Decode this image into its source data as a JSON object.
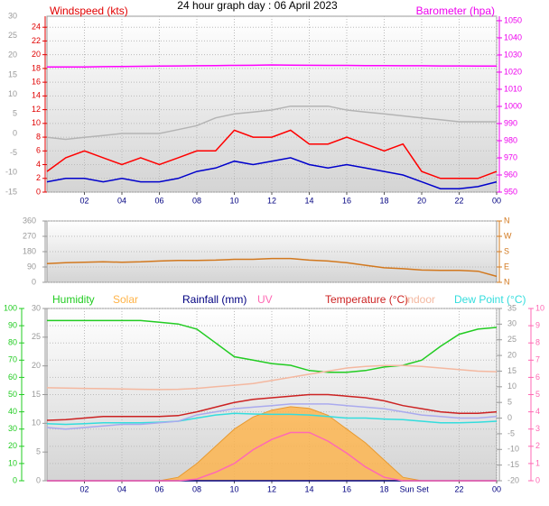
{
  "chart_data": [
    {
      "type": "line",
      "title": "24 hour graph day : 06 April 2023",
      "ylabel": "Windspeed (kts)",
      "y2label": "Barometer (hpa)",
      "xlim": [
        0,
        24
      ],
      "xticks": [
        {
          "value": 2,
          "label": "02"
        },
        {
          "value": 4,
          "label": "04"
        },
        {
          "value": 6,
          "label": "06"
        },
        {
          "value": 8,
          "label": "08"
        },
        10,
        12,
        14,
        16,
        18,
        20,
        22,
        {
          "value": 24,
          "label": "00"
        }
      ],
      "x": [
        0,
        1,
        2,
        3,
        4,
        5,
        6,
        7,
        8,
        9,
        10,
        11,
        12,
        13,
        14,
        15,
        16,
        17,
        18,
        19,
        20,
        21,
        22,
        23,
        24
      ],
      "ylim": [
        0,
        25.6
      ],
      "yticks": [
        0,
        2,
        4,
        6,
        8,
        10,
        12,
        14,
        16,
        18,
        20,
        22,
        24
      ],
      "ycolor": "#e00000",
      "y2lim": [
        950,
        1052.6
      ],
      "y2ticks": [
        950,
        960,
        970,
        980,
        990,
        1000,
        1010,
        1020,
        1030,
        1040,
        1050
      ],
      "y2color": "#ee00ee",
      "y3lim": [
        -15,
        30
      ],
      "y3ticks": [
        -15,
        -10,
        -5,
        0,
        5,
        10,
        15,
        20,
        25,
        30
      ],
      "y3color": "#999999",
      "grid": true,
      "series": [
        {
          "axis": "y2",
          "color": "#ff00ff",
          "values": [
            1023,
            1023,
            1023,
            1023.2,
            1023.3,
            1023.4,
            1023.5,
            1023.6,
            1023.7,
            1023.8,
            1023.9,
            1024,
            1024.2,
            1024.1,
            1024,
            1023.9,
            1023.9,
            1023.8,
            1023.8,
            1023.7,
            1023.7,
            1023.6,
            1023.6,
            1023.5,
            1023.5
          ]
        },
        {
          "axis": "y3",
          "color": "#b4b4b4",
          "values": [
            -1,
            -1.5,
            -1,
            -0.5,
            0,
            0,
            0,
            1,
            2,
            4,
            5,
            5.5,
            6,
            7,
            7,
            7,
            6,
            5.5,
            5,
            4.5,
            4,
            3.5,
            3,
            3,
            3
          ]
        },
        {
          "name": "Windspeed (kts)",
          "color": "#ff0000",
          "values": [
            3,
            5,
            6,
            5,
            4,
            5,
            4,
            5,
            6,
            6,
            9,
            8,
            8,
            9,
            7,
            7,
            8,
            7,
            6,
            7,
            3,
            2,
            2,
            2,
            3
          ]
        },
        {
          "color": "#0000cc",
          "values": [
            1.5,
            2,
            2,
            1.5,
            2,
            1.5,
            1.5,
            2,
            3,
            3.5,
            4.5,
            4,
            4.5,
            5,
            4,
            3.5,
            4,
            3.5,
            3,
            2.5,
            1.5,
            0.5,
            0.5,
            0.8,
            1.5
          ]
        }
      ]
    },
    {
      "type": "line",
      "xlim": [
        0,
        24
      ],
      "x": [
        0,
        1,
        2,
        3,
        4,
        5,
        6,
        7,
        8,
        9,
        10,
        11,
        12,
        13,
        14,
        15,
        16,
        17,
        18,
        19,
        20,
        21,
        22,
        23,
        24
      ],
      "ylim": [
        0,
        360
      ],
      "yticks": [
        0,
        90,
        180,
        270,
        360
      ],
      "ycolor": "#999999",
      "y2lim": [
        0,
        360
      ],
      "y2ticks": [
        {
          "value": 0,
          "label": "N"
        },
        {
          "value": 90,
          "label": "E"
        },
        {
          "value": 180,
          "label": "S"
        },
        {
          "value": 270,
          "label": "W"
        },
        {
          "value": 360,
          "label": "N"
        }
      ],
      "y2color": "#d2781e",
      "grid": true,
      "series": [
        {
          "color": "#d2781e",
          "values": [
            110,
            115,
            118,
            120,
            118,
            120,
            125,
            128,
            128,
            130,
            135,
            135,
            140,
            140,
            130,
            125,
            115,
            100,
            85,
            80,
            72,
            70,
            70,
            65,
            35
          ]
        }
      ]
    },
    {
      "type": "line",
      "xlim": [
        0,
        24
      ],
      "xticks": [
        {
          "value": 2,
          "label": "02"
        },
        {
          "value": 4,
          "label": "04"
        },
        {
          "value": 6,
          "label": "06"
        },
        {
          "value": 8,
          "label": "08"
        },
        10,
        12,
        14,
        16,
        18,
        22,
        {
          "value": 24,
          "label": "00"
        }
      ],
      "x": [
        0,
        1,
        2,
        3,
        4,
        5,
        6,
        7,
        8,
        9,
        10,
        11,
        12,
        13,
        14,
        15,
        16,
        17,
        18,
        19,
        20,
        21,
        22,
        23,
        24
      ],
      "ylim": [
        0,
        100
      ],
      "yticks": [
        0,
        10,
        20,
        30,
        40,
        50,
        60,
        70,
        80,
        90,
        100
      ],
      "ycolor": "#22cc22",
      "y3lim": [
        0,
        30
      ],
      "y3ticks": [
        0,
        5,
        10,
        15,
        20,
        25,
        30
      ],
      "y3color": "#999999",
      "y2lim": [
        -20,
        35
      ],
      "y2ticks": [
        -20,
        -15,
        -10,
        -5,
        0,
        5,
        10,
        15,
        20,
        25,
        30,
        35
      ],
      "y2color": "#999999",
      "y4lim": [
        0,
        10
      ],
      "y4ticks": [
        0,
        1,
        2,
        3,
        4,
        5,
        6,
        7,
        8,
        9,
        10
      ],
      "y4color": "#ff69b4",
      "grid": true,
      "annotations": [
        {
          "text": "Sun Set",
          "x": 19.6
        }
      ],
      "series": [
        {
          "name": "Humidity",
          "color": "#22cc22",
          "values": [
            93,
            93,
            93,
            93,
            93,
            93,
            92,
            91,
            88,
            80,
            72,
            70,
            68,
            67,
            64,
            63,
            63,
            64,
            66,
            67,
            70,
            78,
            85,
            88,
            89
          ]
        },
        {
          "name": "Solar",
          "color": "#ffb347",
          "style": "area",
          "values": [
            0,
            0,
            0,
            0,
            0,
            0,
            0,
            2,
            10,
            20,
            30,
            37,
            41,
            43,
            42,
            38,
            30,
            22,
            12,
            2,
            0,
            0,
            0,
            0,
            0
          ]
        },
        {
          "name": "Rainfall (mm)",
          "color": "#000080",
          "axis": "y3",
          "values": [
            0,
            0,
            0,
            0,
            0,
            0,
            0,
            0,
            0,
            0,
            0,
            0,
            0,
            0,
            0,
            0,
            0,
            0,
            0,
            0,
            0,
            0,
            0,
            0,
            0
          ]
        },
        {
          "name": "UV",
          "color": "#ff69b4",
          "axis": "y4",
          "values": [
            0,
            0,
            0,
            0,
            0,
            0,
            0,
            0,
            0.1,
            0.5,
            1,
            1.8,
            2.4,
            2.8,
            2.8,
            2.3,
            1.6,
            0.8,
            0.2,
            0,
            0,
            0,
            0,
            0,
            0
          ]
        },
        {
          "name": "Temperature (°C)",
          "color": "#cc2222",
          "axis": "y2",
          "values": [
            -0.7,
            -0.5,
            0,
            0.5,
            0.5,
            0.5,
            0.5,
            0.8,
            2,
            3.5,
            5,
            6,
            6.5,
            7,
            7.5,
            7.5,
            7,
            6.5,
            5.5,
            4,
            3,
            2,
            1.5,
            1.5,
            2
          ]
        },
        {
          "name": "Indoor",
          "color": "#f4b8a0",
          "axis": "y2",
          "values": [
            9.7,
            9.6,
            9.5,
            9.4,
            9.3,
            9.2,
            9.1,
            9.2,
            9.5,
            10,
            10.5,
            11,
            12,
            13,
            14,
            15,
            16,
            16.5,
            16.8,
            16.8,
            16.5,
            16,
            15.5,
            15,
            14.8
          ]
        },
        {
          "name": "Dew Point (°C)",
          "color": "#33dddd",
          "axis": "y2",
          "values": [
            -1.8,
            -2,
            -1.8,
            -1.5,
            -1.5,
            -1.5,
            -1.3,
            -1,
            0,
            1,
            1.5,
            1.3,
            1.2,
            1.2,
            1,
            0.5,
            0,
            0,
            -0.3,
            -0.5,
            -1,
            -1.5,
            -1.5,
            -1.3,
            -1
          ]
        },
        {
          "color": "#aaaaee",
          "axis": "y2",
          "values": [
            -3,
            -3.5,
            -3,
            -2.5,
            -2,
            -2,
            -1.5,
            -1,
            1,
            2,
            3,
            3.5,
            4,
            4.5,
            4.5,
            4.5,
            4,
            3.5,
            3,
            2,
            1,
            0.5,
            0,
            0,
            0.5
          ]
        }
      ]
    }
  ]
}
